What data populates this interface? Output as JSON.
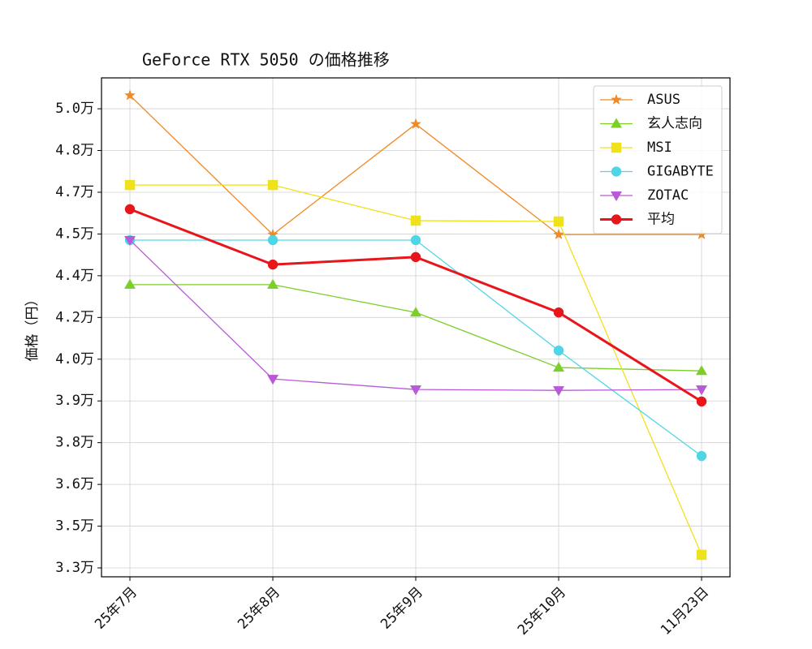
{
  "chart_data": {
    "type": "line",
    "title": "GeForce RTX 5050 の価格推移",
    "y_label": "価格（円）",
    "categories": [
      "25年7月",
      "25年8月",
      "25年9月",
      "25年10月",
      "11月23日"
    ],
    "series": [
      {
        "name": "ASUS",
        "color": "#f08a24",
        "marker": "star",
        "linewidth": 1.3,
        "values": [
          49980,
          44980,
          48950,
          44980,
          44980
        ]
      },
      {
        "name": "玄人志向",
        "color": "#7ccf2a",
        "marker": "triangle-up",
        "linewidth": 1.3,
        "values": [
          43180,
          43180,
          42180,
          40200,
          40080
        ]
      },
      {
        "name": "MSI",
        "color": "#f0e21a",
        "marker": "square",
        "linewidth": 1.3,
        "values": [
          46760,
          46760,
          45480,
          45450,
          33470
        ]
      },
      {
        "name": "GIGABYTE",
        "color": "#4fd6e6",
        "marker": "circle",
        "linewidth": 1.3,
        "values": [
          44780,
          44780,
          44780,
          40810,
          37020
        ]
      },
      {
        "name": "ZOTAC",
        "color": "#b85ad8",
        "marker": "triangle-down",
        "linewidth": 1.3,
        "values": [
          44780,
          39790,
          39410,
          39380,
          39410
        ]
      },
      {
        "name": "平均",
        "color": "#e8151b",
        "marker": "circle",
        "linewidth": 3,
        "values": [
          45890,
          43900,
          44170,
          42180,
          38980
        ]
      }
    ],
    "ylim": [
      32680,
      50610
    ],
    "yticks": [
      {
        "value": 33000,
        "label": "3.3万"
      },
      {
        "value": 34500,
        "label": "3.5万"
      },
      {
        "value": 36000,
        "label": "3.6万"
      },
      {
        "value": 37500,
        "label": "3.8万"
      },
      {
        "value": 39000,
        "label": "3.9万"
      },
      {
        "value": 40500,
        "label": "4.0万"
      },
      {
        "value": 42000,
        "label": "4.2万"
      },
      {
        "value": 43500,
        "label": "4.4万"
      },
      {
        "value": 45000,
        "label": "4.5万"
      },
      {
        "value": 46500,
        "label": "4.7万"
      },
      {
        "value": 48000,
        "label": "4.8万"
      },
      {
        "value": 49500,
        "label": "5.0万"
      }
    ],
    "grid": true,
    "legend_position": "upper-right"
  }
}
